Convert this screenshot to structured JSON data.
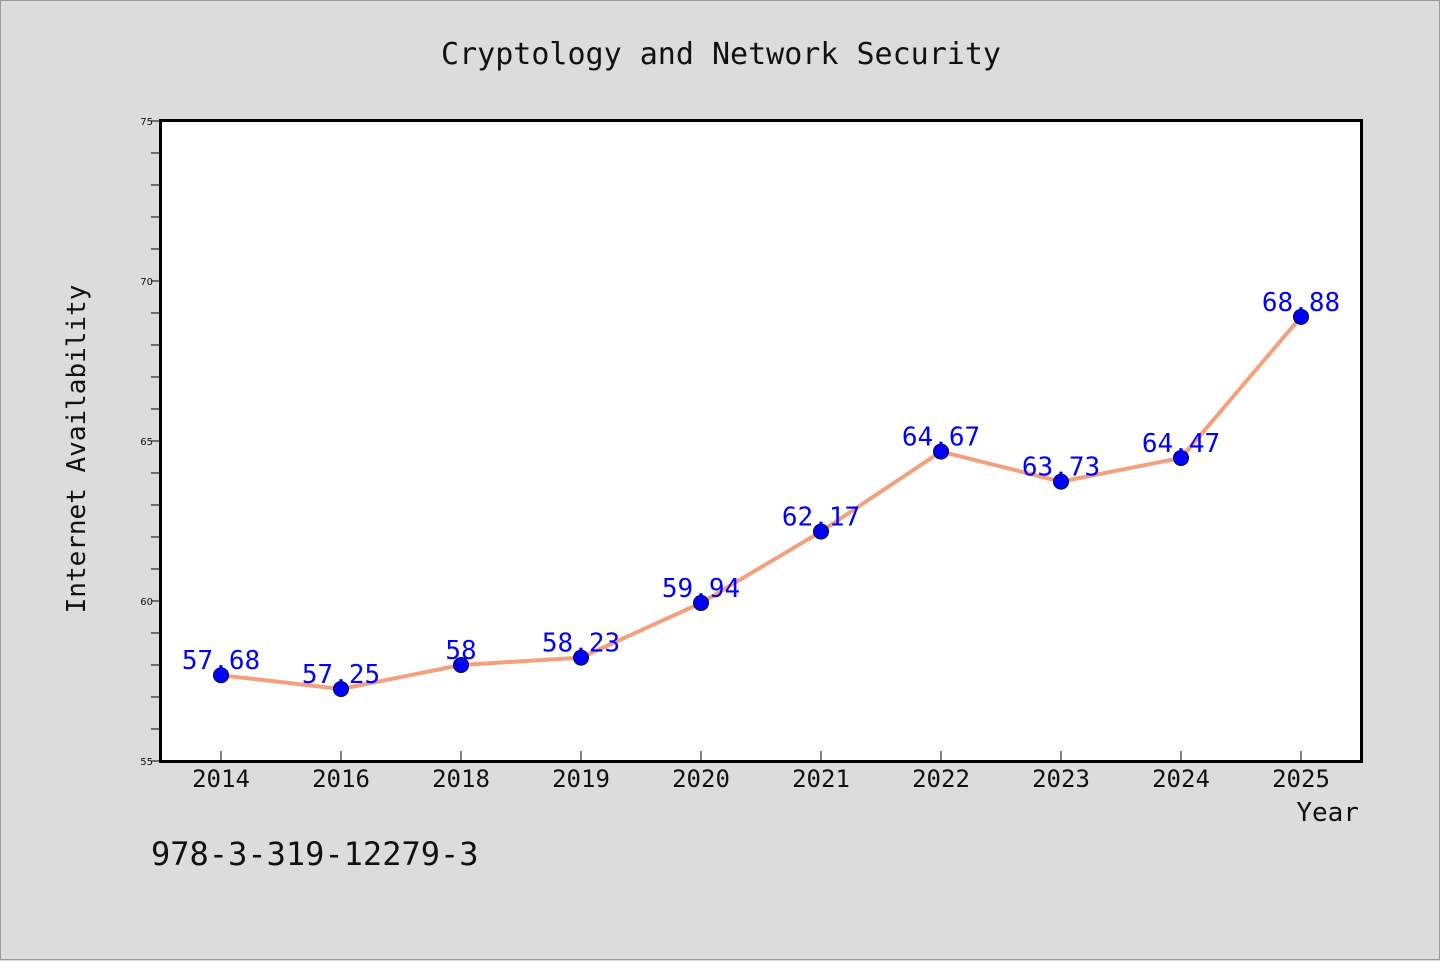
{
  "chart_data": {
    "type": "line",
    "title": "Cryptology and Network Security",
    "xlabel": "Year",
    "ylabel": "Internet Availability",
    "categories": [
      "2014",
      "2016",
      "2018",
      "2019",
      "2020",
      "2021",
      "2022",
      "2023",
      "2024",
      "2025"
    ],
    "values": [
      57.68,
      57.25,
      58,
      58.23,
      59.94,
      62.17,
      64.67,
      63.73,
      64.47,
      68.88
    ],
    "data_labels": [
      "57.68",
      "57.25",
      "58",
      "58.23",
      "59.94",
      "62.17",
      "64.67",
      "63.73",
      "64.47",
      "68.88"
    ],
    "ylim": [
      55,
      75
    ],
    "yticks": [
      "55",
      "60",
      "65",
      "70",
      "75"
    ],
    "grid": false,
    "legend": "none",
    "line_color": "#f4a07f",
    "marker_color": "#0000ff",
    "label_color": "#0000ff"
  },
  "footer": {
    "isbn": "978-3-319-12279-3"
  }
}
